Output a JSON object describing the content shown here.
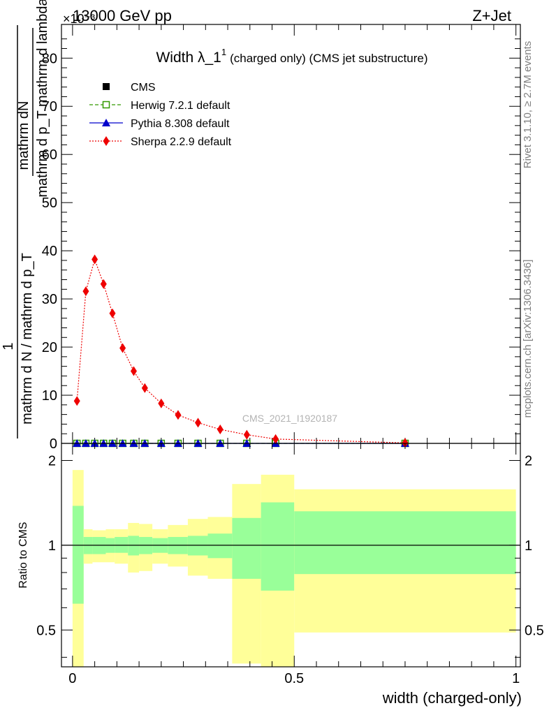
{
  "header": {
    "left": "13000 GeV pp",
    "multiplier": "×10⁻³",
    "right": "Z+Jet"
  },
  "side_labels": {
    "rivet": "Rivet 3.1.10, ≥ 2.7M events",
    "mcplots": "mcplots.cern.ch [arXiv:1306.3436]"
  },
  "watermark": "CMS_2021_I1920187",
  "main_panel": {
    "title_main": "Width λ_1",
    "title_sup": "1",
    "title_rest": "(charged only) (CMS jet substructure)",
    "ylabel_frac_top": "mathrm dN",
    "ylabel_frac_bottom": "mathrm d p_T mathrm d lambda",
    "ylabel_one": "1",
    "ylabel_outer_bottom": "mathrm d N / mathrm d p_T",
    "yticks": [
      "0",
      "10",
      "20",
      "30",
      "40",
      "50",
      "60",
      "70",
      "80"
    ]
  },
  "ratio_panel": {
    "ylabel": "Ratio to CMS",
    "yticks": [
      "0.5",
      "1",
      "2"
    ]
  },
  "x_axis": {
    "label": "width (charged-only)",
    "ticks": [
      "0",
      "0.5",
      "1"
    ]
  },
  "legend": [
    {
      "label": "CMS",
      "color": "#000000",
      "marker": "square-filled",
      "line": "none"
    },
    {
      "label": "Herwig 7.2.1 default",
      "color": "#339900",
      "marker": "square-open",
      "line": "dashed"
    },
    {
      "label": "Pythia 8.308 default",
      "color": "#0000cc",
      "marker": "triangle-filled",
      "line": "solid"
    },
    {
      "label": "Sherpa 2.2.9 default",
      "color": "#ee0000",
      "marker": "diamond-filled",
      "line": "dotted"
    }
  ],
  "chart_data": {
    "type": "line",
    "xlim": [
      -0.025,
      1.01
    ],
    "ylim": [
      0,
      87
    ],
    "y_multiplier_exponent": -3,
    "ratio_ylim": [
      0.37,
      2.3
    ],
    "ratio_scale": "log",
    "grid": false,
    "legend_position": "top-left",
    "x": [
      0.01,
      0.03,
      0.05,
      0.07,
      0.09,
      0.113,
      0.138,
      0.163,
      0.2,
      0.238,
      0.283,
      0.333,
      0.393,
      0.458,
      0.75
    ],
    "series": [
      {
        "name": "CMS",
        "values": [
          0,
          0,
          0,
          0,
          0,
          0,
          0,
          0,
          0,
          0,
          0,
          0,
          0,
          0,
          0
        ]
      },
      {
        "name": "Herwig 7.2.1 default",
        "values": [
          0,
          0,
          0,
          0,
          0,
          0,
          0,
          0,
          0,
          0,
          0,
          0,
          0,
          0,
          0
        ]
      },
      {
        "name": "Pythia 8.308 default",
        "values": [
          0,
          0,
          0,
          0,
          0,
          0,
          0,
          0,
          0,
          0,
          0,
          0,
          0,
          0,
          0
        ]
      },
      {
        "name": "Sherpa 2.2.9 default",
        "values": [
          8.8,
          31.6,
          38.2,
          33.1,
          27.0,
          19.8,
          15.0,
          11.5,
          8.3,
          5.9,
          4.3,
          2.9,
          1.8,
          0.9,
          0.1
        ]
      }
    ],
    "ratio_bands": [
      {
        "x0": 0.0,
        "x1": 0.025,
        "inner": [
          0.62,
          1.38
        ],
        "outer": [
          0.1,
          1.85
        ]
      },
      {
        "x0": 0.025,
        "x1": 0.045,
        "inner": [
          0.93,
          1.07
        ],
        "outer": [
          0.86,
          1.14
        ]
      },
      {
        "x0": 0.045,
        "x1": 0.075,
        "inner": [
          0.93,
          1.07
        ],
        "outer": [
          0.87,
          1.13
        ]
      },
      {
        "x0": 0.075,
        "x1": 0.095,
        "inner": [
          0.94,
          1.06
        ],
        "outer": [
          0.87,
          1.14
        ]
      },
      {
        "x0": 0.095,
        "x1": 0.125,
        "inner": [
          0.94,
          1.07
        ],
        "outer": [
          0.86,
          1.14
        ]
      },
      {
        "x0": 0.125,
        "x1": 0.15,
        "inner": [
          0.92,
          1.08
        ],
        "outer": [
          0.8,
          1.2
        ]
      },
      {
        "x0": 0.15,
        "x1": 0.18,
        "inner": [
          0.93,
          1.07
        ],
        "outer": [
          0.81,
          1.19
        ]
      },
      {
        "x0": 0.18,
        "x1": 0.215,
        "inner": [
          0.94,
          1.06
        ],
        "outer": [
          0.86,
          1.14
        ]
      },
      {
        "x0": 0.215,
        "x1": 0.26,
        "inner": [
          0.93,
          1.07
        ],
        "outer": [
          0.84,
          1.18
        ]
      },
      {
        "x0": 0.26,
        "x1": 0.305,
        "inner": [
          0.92,
          1.08
        ],
        "outer": [
          0.78,
          1.24
        ]
      },
      {
        "x0": 0.305,
        "x1": 0.36,
        "inner": [
          0.9,
          1.1
        ],
        "outer": [
          0.76,
          1.26
        ]
      },
      {
        "x0": 0.36,
        "x1": 0.425,
        "inner": [
          0.76,
          1.25
        ],
        "outer": [
          0.38,
          1.65
        ]
      },
      {
        "x0": 0.425,
        "x1": 0.5,
        "inner": [
          0.69,
          1.42
        ],
        "outer": [
          0.37,
          1.78
        ]
      },
      {
        "x0": 0.5,
        "x1": 1.0,
        "inner": [
          0.79,
          1.32
        ],
        "outer": [
          0.49,
          1.58
        ]
      }
    ]
  }
}
